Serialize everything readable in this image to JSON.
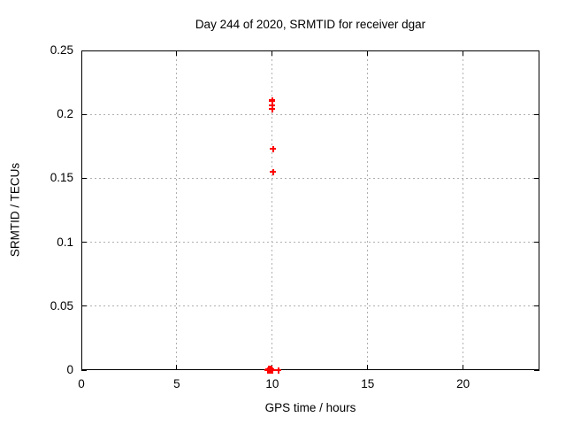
{
  "chart_data": {
    "type": "scatter",
    "title": "Day 244 of 2020, SRMTID for receiver dgar",
    "xlabel": "GPS time / hours",
    "ylabel": "SRMTID / TECUs",
    "xlim": [
      0,
      24
    ],
    "ylim": [
      0,
      0.25
    ],
    "xticks": {
      "values": [
        0,
        5,
        10,
        15,
        20
      ],
      "labels": [
        "0",
        "5",
        "10",
        "15",
        "20"
      ]
    },
    "yticks": {
      "values": [
        0,
        0.05,
        0.1,
        0.15,
        0.2,
        0.25
      ],
      "labels": [
        "0",
        "0.05",
        "0.1",
        "0.15",
        "0.2",
        "0.25"
      ]
    },
    "grid": true,
    "grid_style": "dotted",
    "legend_position": "none",
    "marker": "plus",
    "colors": {
      "marker": "#ff0000",
      "grid": "#b0b0b0",
      "axis": "#000000",
      "background": "#ffffff"
    },
    "series": [
      {
        "name": "SRMTID",
        "points": [
          {
            "x": 10.0,
            "y": 0.211
          },
          {
            "x": 10.0,
            "y": 0.2105
          },
          {
            "x": 10.0,
            "y": 0.207
          },
          {
            "x": 10.0,
            "y": 0.204
          },
          {
            "x": 10.05,
            "y": 0.173
          },
          {
            "x": 10.05,
            "y": 0.155
          },
          {
            "x": 9.76,
            "y": 0
          },
          {
            "x": 9.8,
            "y": 0
          },
          {
            "x": 9.84,
            "y": 0
          },
          {
            "x": 9.88,
            "y": 0
          },
          {
            "x": 9.92,
            "y": 0
          },
          {
            "x": 9.96,
            "y": 0
          },
          {
            "x": 10.0,
            "y": 0
          },
          {
            "x": 9.8,
            "y": 0.0008
          },
          {
            "x": 9.88,
            "y": 0.0008
          },
          {
            "x": 9.96,
            "y": 0.0008
          },
          {
            "x": 10.33,
            "y": 0
          }
        ]
      }
    ]
  }
}
